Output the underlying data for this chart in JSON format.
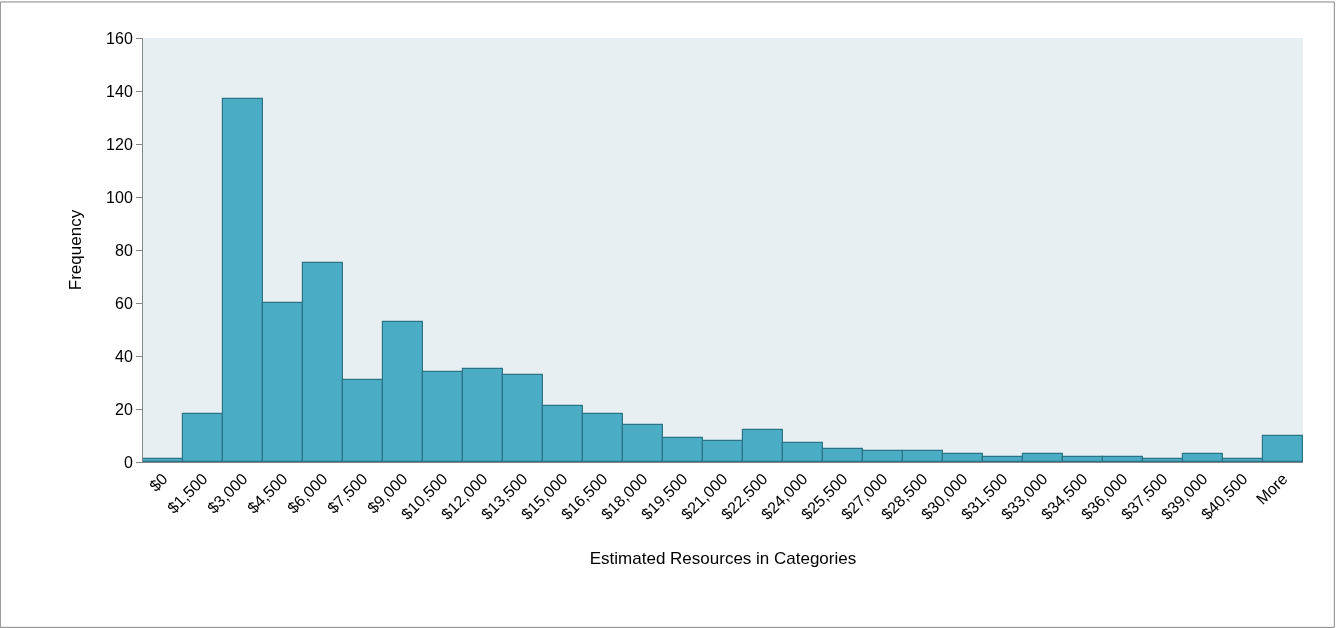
{
  "chart_data": {
    "type": "bar",
    "xlabel": "Estimated Resources in Categories",
    "ylabel": "Frequency",
    "categories": [
      "$0",
      "$1,500",
      "$3,000",
      "$4,500",
      "$6,000",
      "$7,500",
      "$9,000",
      "$10,500",
      "$12,000",
      "$13,500",
      "$15,000",
      "$16,500",
      "$18,000",
      "$19,500",
      "$21,000",
      "$22,500",
      "$24,000",
      "$25,500",
      "$27,000",
      "$28,500",
      "$30,000",
      "$31,500",
      "$33,000",
      "$34,500",
      "$36,000",
      "$37,500",
      "$39,000",
      "$40,500",
      "More"
    ],
    "values": [
      1,
      18,
      137,
      60,
      75,
      31,
      53,
      34,
      35,
      33,
      21,
      18,
      14,
      9,
      8,
      12,
      7,
      5,
      4,
      4,
      3,
      2,
      3,
      2,
      2,
      1,
      3,
      1,
      10
    ],
    "color": "#4bacc6",
    "ylim": [
      0,
      160
    ],
    "yticks": [
      0,
      20,
      40,
      60,
      80,
      100,
      120,
      140,
      160
    ],
    "grid": false,
    "legend": false
  }
}
